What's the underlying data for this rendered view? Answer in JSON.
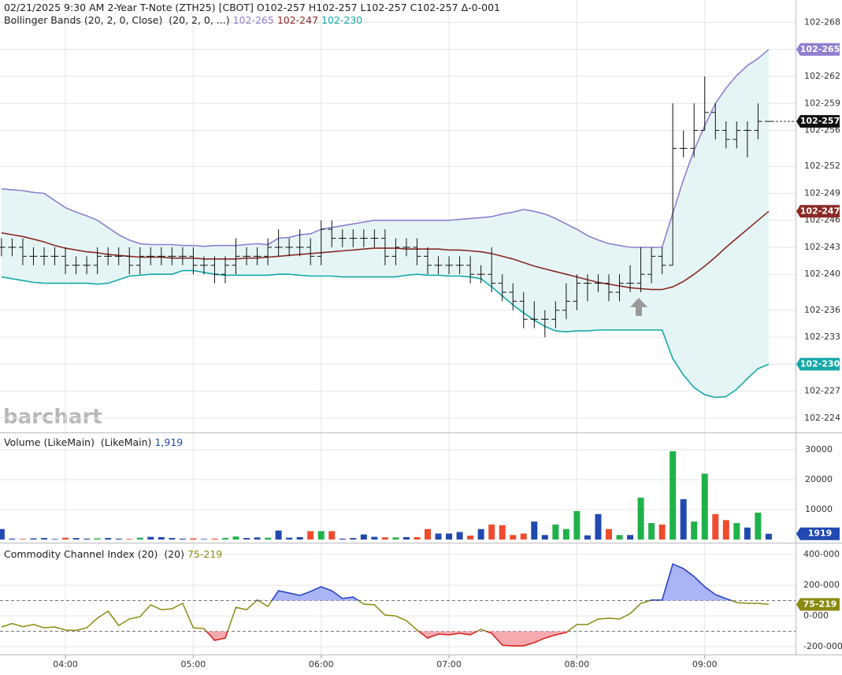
{
  "chart_data": [
    {
      "type": "ohlc",
      "title": "02/21/2025 9:30 AM 2-Year T-Note (ZTH25) [CBOT] O102-257 H102-257 L102-257 C102-257 Δ-0-001",
      "watermark": "barchart",
      "x": [
        210,
        215,
        220,
        225,
        230,
        235,
        240,
        245,
        250,
        255,
        260,
        265,
        270,
        275,
        280,
        285,
        290,
        295,
        300,
        305,
        310,
        315,
        320,
        325,
        330,
        335,
        340,
        345,
        350,
        355,
        360,
        365,
        370,
        375,
        380,
        385,
        390,
        395,
        400,
        405,
        410,
        415,
        420,
        425,
        430,
        435,
        440,
        445,
        450,
        455,
        460,
        465,
        470,
        475,
        480,
        485,
        490,
        495,
        500,
        505,
        510,
        515,
        520,
        525,
        530,
        535,
        540,
        545,
        550,
        555,
        560,
        565,
        570
      ],
      "xlim": [
        209.3,
        582.6
      ],
      "xticks": [
        {
          "value": 240,
          "label": "04:00"
        },
        {
          "value": 300,
          "label": "05:00"
        },
        {
          "value": 360,
          "label": "06:00"
        },
        {
          "value": 420,
          "label": "07:00"
        },
        {
          "value": 480,
          "label": "08:00"
        },
        {
          "value": 540,
          "label": "09:00"
        }
      ],
      "ylim": [
        22.25,
        27.05
      ],
      "yticks": [
        {
          "value": 26.8,
          "label": "102-268"
        },
        {
          "value": 26.5,
          "label": "102-265"
        },
        {
          "value": 26.2,
          "label": "102-262"
        },
        {
          "value": 25.9,
          "label": "102-259"
        },
        {
          "value": 25.6,
          "label": "102-256"
        },
        {
          "value": 25.2,
          "label": "102-252"
        },
        {
          "value": 24.9,
          "label": "102-249"
        },
        {
          "value": 24.6,
          "label": "102-246"
        },
        {
          "value": 24.3,
          "label": "102-243"
        },
        {
          "value": 24.0,
          "label": "102-240"
        },
        {
          "value": 23.6,
          "label": "102-236"
        },
        {
          "value": 23.3,
          "label": "102-233"
        },
        {
          "value": 23.0,
          "label": "102-230"
        },
        {
          "value": 22.7,
          "label": "102-227"
        },
        {
          "value": 22.4,
          "label": "102-224"
        }
      ],
      "grid": true,
      "color": "#111111",
      "open": [
        24.3,
        24.3,
        24.3,
        24.2,
        24.2,
        24.2,
        24.2,
        24.1,
        24.1,
        24.1,
        24.2,
        24.2,
        24.2,
        24.1,
        24.2,
        24.2,
        24.2,
        24.2,
        24.2,
        24.1,
        24.1,
        24.0,
        24.1,
        24.2,
        24.2,
        24.2,
        24.3,
        24.3,
        24.3,
        24.3,
        24.2,
        24.5,
        24.4,
        24.4,
        24.4,
        24.4,
        24.4,
        24.2,
        24.3,
        24.3,
        24.2,
        24.1,
        24.1,
        24.1,
        24.1,
        24.0,
        24.0,
        23.9,
        23.8,
        23.7,
        23.5,
        23.5,
        23.5,
        23.6,
        23.7,
        23.9,
        23.9,
        23.9,
        23.8,
        23.9,
        23.9,
        24.0,
        24.2,
        24.1,
        25.4,
        25.4,
        25.6,
        25.8,
        25.6,
        25.5,
        25.6,
        25.6,
        25.7
      ],
      "high": [
        24.4,
        24.4,
        24.4,
        24.3,
        24.3,
        24.3,
        24.3,
        24.2,
        24.2,
        24.3,
        24.3,
        24.3,
        24.3,
        24.3,
        24.3,
        24.3,
        24.3,
        24.3,
        24.3,
        24.2,
        24.2,
        24.2,
        24.4,
        24.3,
        24.3,
        24.4,
        24.5,
        24.4,
        24.5,
        24.4,
        24.6,
        24.6,
        24.5,
        24.5,
        24.5,
        24.5,
        24.5,
        24.4,
        24.4,
        24.4,
        24.3,
        24.2,
        24.2,
        24.2,
        24.2,
        24.1,
        24.3,
        24.0,
        23.9,
        23.8,
        23.7,
        23.6,
        23.7,
        23.9,
        24.0,
        24.0,
        24.0,
        24.0,
        24.0,
        24.1,
        24.3,
        24.3,
        24.3,
        25.9,
        25.6,
        25.9,
        26.2,
        25.9,
        25.7,
        25.7,
        25.7,
        25.9,
        25.7
      ],
      "low": [
        24.2,
        24.2,
        24.1,
        24.1,
        24.1,
        24.1,
        24.0,
        24.0,
        24.0,
        24.0,
        24.1,
        24.1,
        24.0,
        24.0,
        24.1,
        24.1,
        24.1,
        24.1,
        24.0,
        24.0,
        23.9,
        23.9,
        24.0,
        24.1,
        24.1,
        24.1,
        24.2,
        24.2,
        24.2,
        24.1,
        24.1,
        24.3,
        24.3,
        24.3,
        24.3,
        24.3,
        24.1,
        24.1,
        24.2,
        24.1,
        24.0,
        24.0,
        24.0,
        24.0,
        23.9,
        23.9,
        23.8,
        23.7,
        23.6,
        23.4,
        23.4,
        23.3,
        23.4,
        23.5,
        23.6,
        23.7,
        23.8,
        23.7,
        23.7,
        23.8,
        23.8,
        23.9,
        24.0,
        24.1,
        25.3,
        25.3,
        25.6,
        25.5,
        25.4,
        25.4,
        25.3,
        25.5,
        25.7
      ],
      "close": [
        24.3,
        24.3,
        24.2,
        24.2,
        24.2,
        24.2,
        24.1,
        24.1,
        24.1,
        24.2,
        24.2,
        24.2,
        24.1,
        24.2,
        24.2,
        24.2,
        24.2,
        24.2,
        24.1,
        24.1,
        24.0,
        24.1,
        24.2,
        24.2,
        24.2,
        24.3,
        24.3,
        24.3,
        24.3,
        24.2,
        24.5,
        24.4,
        24.4,
        24.4,
        24.4,
        24.4,
        24.2,
        24.3,
        24.3,
        24.2,
        24.1,
        24.1,
        24.1,
        24.1,
        24.0,
        24.0,
        23.9,
        23.8,
        23.7,
        23.5,
        23.5,
        23.5,
        23.6,
        23.7,
        23.9,
        23.9,
        23.9,
        23.8,
        23.9,
        23.9,
        24.0,
        24.2,
        24.1,
        25.4,
        25.4,
        25.6,
        25.8,
        25.6,
        25.5,
        25.6,
        25.6,
        25.7,
        25.7
      ],
      "close_label": "102-257",
      "indicator": {
        "title": "Bollinger Bands (20, 2, 0, Close)  (20, 2, 0, ...)",
        "fill": "#e5f5f5",
        "lines": [
          {
            "color": "#8f7fd0",
            "label": "102-265",
            "values": [
              24.95,
              24.94,
              24.93,
              24.91,
              24.9,
              24.82,
              24.74,
              24.69,
              24.65,
              24.6,
              24.52,
              24.44,
              24.38,
              24.34,
              24.33,
              24.33,
              24.33,
              24.32,
              24.32,
              24.31,
              24.32,
              24.32,
              24.32,
              24.33,
              24.34,
              24.33,
              24.4,
              24.41,
              24.44,
              24.45,
              24.5,
              24.52,
              24.54,
              24.56,
              24.58,
              24.6,
              24.6,
              24.6,
              24.6,
              24.6,
              24.6,
              24.6,
              24.6,
              24.61,
              24.62,
              24.63,
              24.64,
              24.67,
              24.69,
              24.72,
              24.7,
              24.67,
              24.62,
              24.56,
              24.5,
              24.43,
              24.38,
              24.34,
              24.32,
              24.3,
              24.3,
              24.3,
              24.3,
              24.68,
              25.05,
              25.38,
              25.65,
              25.9,
              26.07,
              26.21,
              26.32,
              26.4,
              26.5
            ]
          },
          {
            "color": "#8b2a24",
            "label": "102-247",
            "values": [
              24.46,
              24.44,
              24.42,
              24.39,
              24.36,
              24.32,
              24.29,
              24.27,
              24.25,
              24.24,
              24.22,
              24.21,
              24.2,
              24.19,
              24.19,
              24.19,
              24.18,
              24.18,
              24.18,
              24.17,
              24.17,
              24.17,
              24.17,
              24.18,
              24.18,
              24.19,
              24.2,
              24.21,
              24.22,
              24.23,
              24.24,
              24.25,
              24.26,
              24.27,
              24.28,
              24.29,
              24.29,
              24.29,
              24.28,
              24.28,
              24.28,
              24.28,
              24.27,
              24.27,
              24.26,
              24.25,
              24.23,
              24.2,
              24.17,
              24.13,
              24.09,
              24.06,
              24.03,
              24.0,
              23.97,
              23.94,
              23.91,
              23.89,
              23.87,
              23.85,
              23.84,
              23.83,
              23.83,
              23.86,
              23.92,
              24.0,
              24.09,
              24.19,
              24.3,
              24.4,
              24.5,
              24.6,
              24.7
            ]
          },
          {
            "color": "#16a8a8",
            "label": "102-230",
            "values": [
              23.97,
              23.95,
              23.93,
              23.91,
              23.9,
              23.9,
              23.9,
              23.9,
              23.9,
              23.89,
              23.9,
              23.94,
              23.98,
              23.99,
              24.0,
              24.0,
              24.0,
              24.04,
              24.04,
              24.02,
              24.0,
              23.99,
              23.99,
              23.99,
              23.99,
              23.99,
              24.0,
              24.0,
              23.99,
              23.98,
              23.98,
              23.98,
              23.97,
              23.97,
              23.97,
              23.97,
              23.97,
              23.97,
              23.99,
              24.0,
              23.99,
              23.99,
              23.98,
              23.98,
              23.97,
              23.95,
              23.86,
              23.76,
              23.66,
              23.57,
              23.49,
              23.42,
              23.37,
              23.36,
              23.37,
              23.37,
              23.38,
              23.38,
              23.38,
              23.38,
              23.38,
              23.38,
              23.38,
              23.06,
              22.88,
              22.74,
              22.66,
              22.63,
              22.64,
              22.72,
              22.84,
              22.95,
              23.0
            ]
          }
        ]
      }
    },
    {
      "type": "bar",
      "title": "Volume (LikeMain)  (LikeMain)",
      "last_label": "1,919",
      "label_color": "#2149b0",
      "ylim": [
        0,
        35000
      ],
      "yticks": [
        10000,
        20000,
        30000
      ],
      "colors": {
        "up": "#1fb24a",
        "down": "#f04b2f",
        "flat": "#2149b0"
      },
      "values": [
        3500,
        300,
        200,
        400,
        500,
        200,
        600,
        500,
        300,
        400,
        500,
        300,
        200,
        600,
        900,
        800,
        500,
        300,
        400,
        200,
        300,
        500,
        1000,
        500,
        700,
        600,
        3000,
        600,
        800,
        2800,
        2800,
        2800,
        300,
        500,
        1700,
        900,
        700,
        700,
        800,
        800,
        3500,
        2000,
        2000,
        2500,
        1300,
        3500,
        5000,
        4800,
        1500,
        2000,
        6000,
        1500,
        5000,
        3500,
        9500,
        1400,
        8500,
        3500,
        1500,
        1500,
        14000,
        5500,
        5000,
        29500,
        13500,
        6000,
        22000,
        8500,
        6500,
        5500,
        4000,
        9000,
        1919
      ]
    },
    {
      "type": "line",
      "title": "Commodity Channel Index (20)  (20)",
      "last_label": "75-219",
      "color": "#8a8a12",
      "above_color": "#2844d8",
      "above_fill": "#aab4f6",
      "below_color": "#e0262b",
      "below_fill": "#f6aab0",
      "levels": [
        100,
        -100
      ],
      "ylim": [
        -246,
        461
      ],
      "yticks": [
        {
          "value": 400,
          "label": "400-000"
        },
        {
          "value": 200,
          "label": "200-000"
        },
        {
          "value": 0,
          "label": "0-000"
        },
        {
          "value": -200,
          "label": "-200-000"
        }
      ],
      "values": [
        -72,
        -50,
        -70,
        -56,
        -77,
        -72,
        -92,
        -95,
        -77,
        -15,
        31,
        -62,
        -20,
        -5,
        72,
        41,
        46,
        82,
        -77,
        -82,
        -159,
        -144,
        56,
        41,
        103,
        62,
        164,
        149,
        133,
        159,
        190,
        164,
        113,
        123,
        77,
        72,
        5,
        0,
        -31,
        -92,
        -144,
        -118,
        -123,
        -113,
        -123,
        -87,
        -113,
        -190,
        -195,
        -195,
        -174,
        -144,
        -123,
        -108,
        -56,
        -56,
        -20,
        -15,
        -20,
        15,
        82,
        103,
        103,
        338,
        308,
        256,
        190,
        138,
        113,
        87,
        82,
        82,
        75
      ]
    }
  ]
}
